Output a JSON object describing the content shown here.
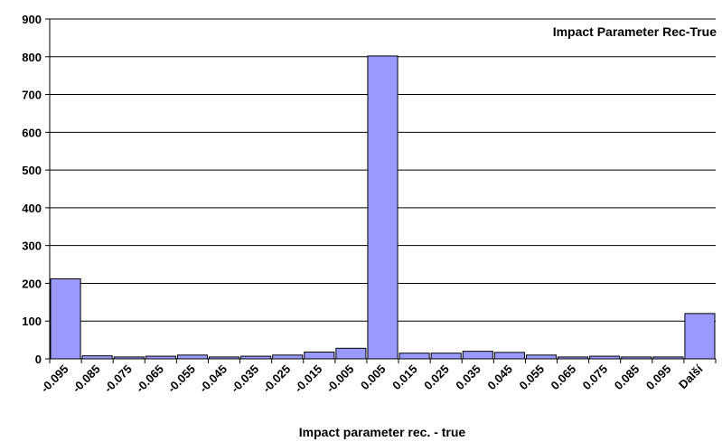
{
  "chart_data": {
    "type": "bar",
    "title": "Impact Parameter Rec-True",
    "xlabel": "Impact parameter rec. - true",
    "ylabel": "",
    "ylim": [
      0,
      900
    ],
    "yticks": [
      0,
      100,
      200,
      300,
      400,
      500,
      600,
      700,
      800,
      900
    ],
    "grid": true,
    "categories": [
      "-0.095",
      "-0.085",
      "-0.075",
      "-0.065",
      "-0.055",
      "-0.045",
      "-0.035",
      "-0.025",
      "-0.015",
      "-0.005",
      "0.005",
      "0.015",
      "0.025",
      "0.035",
      "0.045",
      "0.055",
      "0.065",
      "0.075",
      "0.085",
      "0.095",
      "Další"
    ],
    "values": [
      212,
      8,
      5,
      7,
      10,
      5,
      7,
      10,
      18,
      28,
      802,
      15,
      15,
      20,
      17,
      10,
      5,
      7,
      5,
      5,
      120
    ],
    "colors": {
      "bar": "#9999ff",
      "bar_edge": "#000000",
      "grid": "#000000"
    }
  }
}
